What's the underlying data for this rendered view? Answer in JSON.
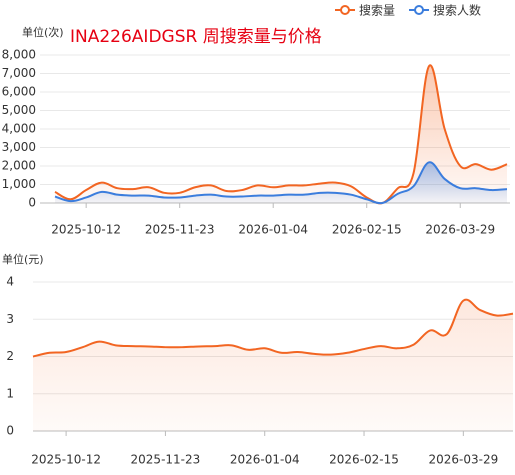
{
  "chart_data": [
    {
      "type": "line",
      "title": "INA226AIDGSR 周搜索量与价格",
      "y_unit": "单位(次)",
      "categories": [
        null,
        null,
        "2025-10-12",
        null,
        null,
        null,
        null,
        null,
        "2025-11-23",
        null,
        null,
        null,
        null,
        null,
        "2026-01-04",
        null,
        null,
        null,
        null,
        null,
        "2026-02-15",
        null,
        null,
        null,
        null,
        null,
        "2026-03-29",
        null,
        null,
        null
      ],
      "series": [
        {
          "name": "搜索量",
          "color": "#f26522",
          "values": [
            600,
            200,
            700,
            1100,
            800,
            750,
            850,
            550,
            550,
            850,
            950,
            650,
            700,
            950,
            850,
            950,
            950,
            1050,
            1100,
            900,
            300,
            0,
            800,
            1600,
            7400,
            4000,
            2000,
            2100,
            1800,
            2100
          ]
        },
        {
          "name": "搜索人数",
          "color": "#3b7ddd",
          "values": [
            350,
            100,
            300,
            600,
            450,
            400,
            400,
            300,
            300,
            400,
            450,
            350,
            350,
            400,
            400,
            450,
            450,
            550,
            550,
            450,
            200,
            0,
            500,
            900,
            2200,
            1300,
            800,
            800,
            700,
            750
          ]
        }
      ],
      "ylim": [
        0,
        8000
      ],
      "yticks": [
        0,
        {
          "value": 1000,
          "label": "1,000"
        },
        {
          "value": 2000,
          "label": "2,000"
        },
        {
          "value": 3000,
          "label": "3,000"
        },
        {
          "value": 4000,
          "label": "4,000"
        },
        {
          "value": 5000,
          "label": "5,000"
        },
        {
          "value": 6000,
          "label": "6,000"
        },
        {
          "value": 7000,
          "label": "7,000"
        },
        {
          "value": 8000,
          "label": "8,000"
        }
      ],
      "grid": true,
      "legend": "top-right"
    },
    {
      "type": "line",
      "y_unit": "单位(元)",
      "categories": [
        null,
        null,
        "2025-10-12",
        null,
        null,
        null,
        null,
        null,
        "2025-11-23",
        null,
        null,
        null,
        null,
        null,
        "2026-01-04",
        null,
        null,
        null,
        null,
        null,
        "2026-02-15",
        null,
        null,
        null,
        null,
        null,
        "2026-03-29",
        null,
        null,
        null
      ],
      "series": [
        {
          "color": "#f26522",
          "values": [
            2.0,
            2.1,
            2.12,
            2.25,
            2.4,
            2.3,
            2.28,
            2.27,
            2.25,
            2.25,
            2.27,
            2.28,
            2.3,
            2.18,
            2.22,
            2.1,
            2.12,
            2.07,
            2.05,
            2.1,
            2.2,
            2.28,
            2.22,
            2.32,
            2.7,
            2.6,
            3.5,
            3.25,
            3.1,
            3.15
          ]
        }
      ],
      "ylim": [
        0,
        4
      ],
      "yticks": [
        0,
        1,
        2,
        3,
        4
      ],
      "grid": true
    }
  ]
}
